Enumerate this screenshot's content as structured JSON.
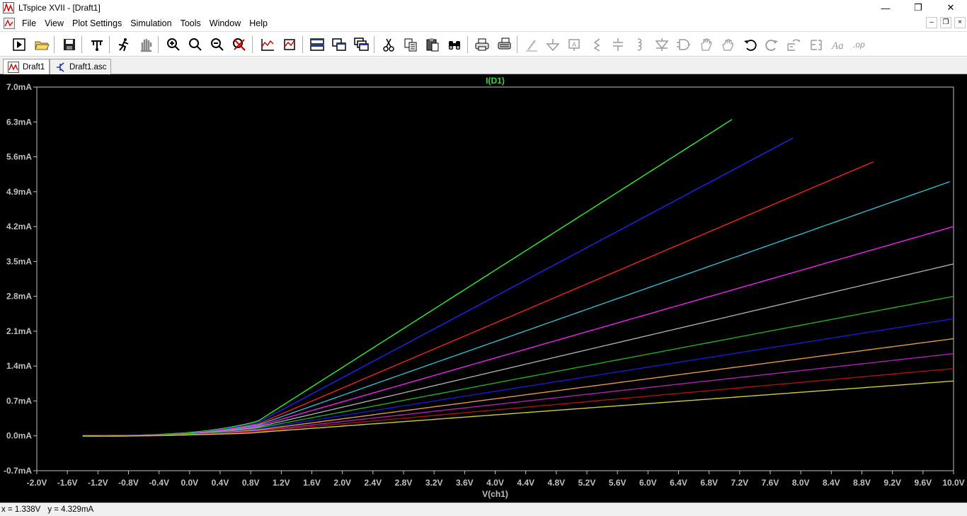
{
  "window": {
    "title": "LTspice XVII - [Draft1]",
    "minimize_label": "—",
    "restore_label": "❐",
    "close_label": "✕"
  },
  "mdi": {
    "minimize_label": "–",
    "restore_label": "❐",
    "close_label": "×"
  },
  "menu": {
    "items": [
      {
        "label": "File"
      },
      {
        "label": "View"
      },
      {
        "label": "Plot Settings"
      },
      {
        "label": "Simulation"
      },
      {
        "label": "Tools"
      },
      {
        "label": "Window"
      },
      {
        "label": "Help"
      }
    ]
  },
  "toolbar": {
    "buttons": [
      "new-schematic-icon",
      "open-icon",
      "save-icon",
      "control-panel-icon",
      "run-icon",
      "halt-icon",
      "zoom-in-icon",
      "zoom-to-fit-icon",
      "zoom-out-icon",
      "zoom-cancel-icon",
      "autorange-icon",
      "mark-unref-icon",
      "tile-horizontal-icon",
      "tile-vertical-icon",
      "cascade-icon",
      "cut-icon",
      "copy-icon",
      "paste-icon",
      "find-icon",
      "print-icon",
      "print-setup-icon",
      "draw-wire-icon",
      "ground-icon",
      "label-net-icon",
      "resistor-icon",
      "capacitor-icon",
      "inductor-icon",
      "diode-icon",
      "component-icon",
      "move-icon",
      "drag-icon",
      "undo-icon",
      "redo-icon",
      "rotate-icon",
      "mirror-icon",
      "text-icon",
      "spice-directive-icon"
    ]
  },
  "tabs": [
    {
      "label": "Draft1",
      "active": true
    },
    {
      "label": "Draft1.asc",
      "active": false
    }
  ],
  "status": {
    "x": "x = 1.338V",
    "y": "y = 4.329mA"
  },
  "colors": {
    "plot_bg": "#000000",
    "axis": "#c0c0c0",
    "tick_text": "#c0c0c0",
    "trace_title": "#33dd33"
  },
  "chart_data": {
    "type": "line",
    "title": "I(D1)",
    "xlabel": "V(ch1)",
    "ylabel": "",
    "xlim": [
      -2.0,
      10.0
    ],
    "ylim": [
      -0.7,
      7.0
    ],
    "x_ticks": [
      "-2.0V",
      "-1.6V",
      "-1.2V",
      "-0.8V",
      "-0.4V",
      "0.0V",
      "0.4V",
      "0.8V",
      "1.2V",
      "1.6V",
      "2.0V",
      "2.4V",
      "2.8V",
      "3.2V",
      "3.6V",
      "4.0V",
      "4.4V",
      "4.8V",
      "5.2V",
      "5.6V",
      "6.0V",
      "6.4V",
      "6.8V",
      "7.2V",
      "7.6V",
      "8.0V",
      "8.4V",
      "8.8V",
      "9.2V",
      "9.6V",
      "10.0V"
    ],
    "y_ticks": [
      "7.0mA",
      "6.3mA",
      "5.6mA",
      "4.9mA",
      "4.2mA",
      "3.5mA",
      "2.8mA",
      "2.1mA",
      "1.4mA",
      "0.7mA",
      "0.0mA",
      "-0.7mA"
    ],
    "series": [
      {
        "color": "#33ee33",
        "x_start": -1.4,
        "knee_x": 0.9,
        "knee_y": 0.3,
        "x_end": 7.1,
        "y_end": 6.35
      },
      {
        "color": "#2222ee",
        "x_start": -1.4,
        "knee_x": 0.9,
        "knee_y": 0.27,
        "x_end": 7.9,
        "y_end": 5.98
      },
      {
        "color": "#ee2222",
        "x_start": -1.4,
        "knee_x": 0.9,
        "knee_y": 0.24,
        "x_end": 8.95,
        "y_end": 5.5
      },
      {
        "color": "#33bbcc",
        "x_start": -1.4,
        "knee_x": 0.9,
        "knee_y": 0.22,
        "x_end": 9.95,
        "y_end": 5.1
      },
      {
        "color": "#ee22ee",
        "x_start": -1.4,
        "knee_x": 0.9,
        "knee_y": 0.2,
        "x_end": 10.0,
        "y_end": 4.2
      },
      {
        "color": "#aaaaaa",
        "x_start": -1.4,
        "knee_x": 0.9,
        "knee_y": 0.18,
        "x_end": 10.0,
        "y_end": 3.45
      },
      {
        "color": "#22aa22",
        "x_start": -1.4,
        "knee_x": 0.9,
        "knee_y": 0.16,
        "x_end": 10.0,
        "y_end": 2.8
      },
      {
        "color": "#1a1acc",
        "x_start": -1.4,
        "knee_x": 0.9,
        "knee_y": 0.14,
        "x_end": 10.0,
        "y_end": 2.35
      },
      {
        "color": "#dd9944",
        "x_start": -1.4,
        "knee_x": 0.9,
        "knee_y": 0.12,
        "x_end": 10.0,
        "y_end": 1.95
      },
      {
        "color": "#aa22aa",
        "x_start": -1.4,
        "knee_x": 0.9,
        "knee_y": 0.1,
        "x_end": 10.0,
        "y_end": 1.65
      },
      {
        "color": "#aa1111",
        "x_start": -1.4,
        "knee_x": 0.9,
        "knee_y": 0.09,
        "x_end": 10.0,
        "y_end": 1.35
      },
      {
        "color": "#cccc33",
        "x_start": -1.4,
        "knee_x": 0.9,
        "knee_y": 0.07,
        "x_end": 10.0,
        "y_end": 1.1
      }
    ],
    "grid": false
  }
}
